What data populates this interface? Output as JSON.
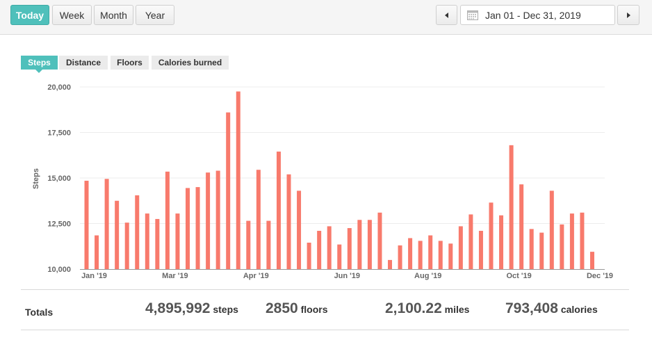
{
  "toolbar": {
    "today_label": "Today",
    "week_label": "Week",
    "month_label": "Month",
    "year_label": "Year",
    "date_range": "Jan 01 - Dec 31, 2019",
    "active": "Today"
  },
  "tabs": [
    "Steps",
    "Distance",
    "Floors",
    "Calories burned"
  ],
  "active_tab": "Steps",
  "colors": {
    "accent": "#4fc0bb",
    "bar": "#f87a6c"
  },
  "icons": {
    "prev": "caret-left-icon",
    "next": "caret-right-icon",
    "calendar": "calendar-icon"
  },
  "chart_data": {
    "type": "bar",
    "ylabel": "Steps",
    "ylim": [
      10000,
      20000
    ],
    "y_ticks": [
      "10,000",
      "12,500",
      "15,000",
      "17,500",
      "20,000"
    ],
    "x_tick_labels": [
      "Jan '19",
      "Mar '19",
      "Apr '19",
      "Jun '19",
      "Aug '19",
      "Oct '19",
      "Dec '19"
    ],
    "x_tick_bar_index": [
      0,
      8,
      16,
      25,
      33,
      42,
      50
    ],
    "values": [
      14850,
      11850,
      14950,
      13750,
      12550,
      14050,
      13050,
      12750,
      15350,
      13050,
      14450,
      14500,
      15300,
      15400,
      18600,
      19750,
      12650,
      15450,
      12650,
      16450,
      15200,
      14300,
      11450,
      12100,
      12350,
      11350,
      12250,
      12700,
      12700,
      13100,
      10500,
      11300,
      11700,
      11550,
      11850,
      11550,
      11400,
      12350,
      13000,
      12100,
      13650,
      12950,
      16800,
      14650,
      12200,
      12000,
      14300,
      12450,
      13050,
      13100,
      10950
    ],
    "grid": true
  },
  "totals": {
    "label": "Totals",
    "steps": "4,895,992",
    "steps_unit": "steps",
    "floors": "2850",
    "floors_unit": "floors",
    "miles": "2,100.22",
    "miles_unit": "miles",
    "calories": "793,408",
    "calories_unit": "calories"
  }
}
